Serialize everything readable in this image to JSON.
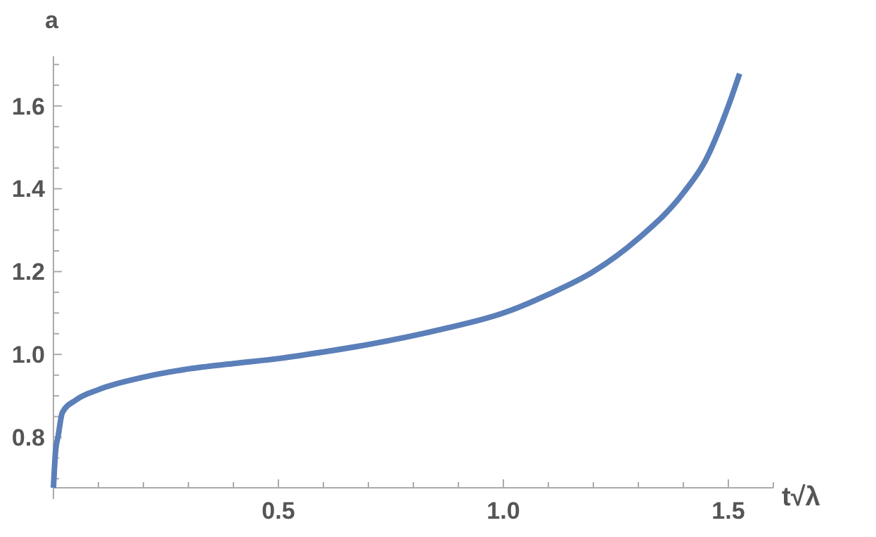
{
  "chart_data": {
    "type": "line",
    "xlabel": "t√λ",
    "ylabel": "a",
    "x": [
      0,
      0.002,
      0.005,
      0.01,
      0.02,
      0.05,
      0.1,
      0.2,
      0.3,
      0.4,
      0.5,
      0.6,
      0.7,
      0.86,
      1.0,
      1.1,
      1.2,
      1.3,
      1.4,
      1.45,
      1.5,
      1.525
    ],
    "series": [
      {
        "color": "#5b7fb9",
        "values": [
          0.678,
          0.72,
          0.77,
          0.8,
          0.86,
          0.89,
          0.915,
          0.945,
          0.965,
          0.978,
          0.99,
          1.006,
          1.024,
          1.06,
          1.1,
          1.145,
          1.2,
          1.28,
          1.39,
          1.47,
          1.6,
          1.678
        ]
      }
    ],
    "xlim": [
      0,
      1.6
    ],
    "ylim": [
      0.678,
      1.72
    ],
    "xticks": [
      {
        "value": 0.1,
        "label": null
      },
      {
        "value": 0.2,
        "label": null
      },
      {
        "value": 0.3,
        "label": null
      },
      {
        "value": 0.4,
        "label": null
      },
      0.5,
      {
        "value": 0.6,
        "label": null
      },
      {
        "value": 0.7,
        "label": null
      },
      {
        "value": 0.8,
        "label": null
      },
      {
        "value": 0.9,
        "label": null
      },
      {
        "value": 1,
        "label": "1.0"
      },
      {
        "value": 1.1,
        "label": null
      },
      {
        "value": 1.2,
        "label": null
      },
      {
        "value": 1.3,
        "label": null
      },
      {
        "value": 1.4,
        "label": null
      },
      1.5,
      {
        "value": 1.6,
        "label": null
      }
    ],
    "yticks": [
      {
        "value": 0.7,
        "label": null
      },
      {
        "value": 0.75,
        "label": null
      },
      0.8,
      {
        "value": 0.85,
        "label": null
      },
      {
        "value": 0.9,
        "label": null
      },
      {
        "value": 0.95,
        "label": null
      },
      {
        "value": 1,
        "label": "1.0"
      },
      {
        "value": 1.05,
        "label": null
      },
      {
        "value": 1.1,
        "label": null
      },
      {
        "value": 1.15,
        "label": null
      },
      1.2,
      {
        "value": 1.25,
        "label": null
      },
      {
        "value": 1.3,
        "label": null
      },
      {
        "value": 1.35,
        "label": null
      },
      1.4,
      {
        "value": 1.45,
        "label": null
      },
      {
        "value": 1.5,
        "label": null
      },
      {
        "value": 1.55,
        "label": null
      },
      1.6,
      {
        "value": 1.65,
        "label": null
      },
      {
        "value": 1.7,
        "label": null
      }
    ],
    "grid": false,
    "marker": "none",
    "line_style": "solid"
  }
}
